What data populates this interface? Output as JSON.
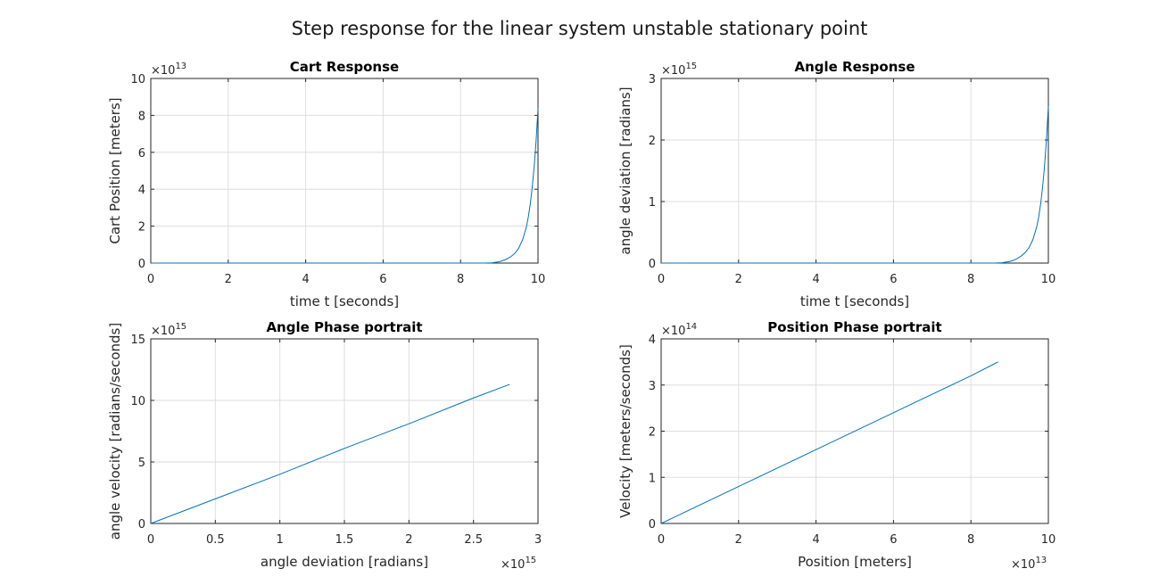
{
  "figure": {
    "title": "Step response for the linear system unstable stationary point"
  },
  "chart_data": [
    {
      "type": "line",
      "title": "Cart Response",
      "xlabel": "time t [seconds]",
      "ylabel": "Cart Position [meters]",
      "xlim": [
        0,
        10
      ],
      "ylim": [
        0,
        100000000000000
      ],
      "xticks": [
        0,
        2,
        4,
        6,
        8,
        10
      ],
      "xtick_labels": [
        "0",
        "2",
        "4",
        "6",
        "8",
        "10"
      ],
      "yticks": [
        0,
        20000000000000,
        40000000000000,
        60000000000000,
        80000000000000,
        100000000000000
      ],
      "ytick_labels": [
        "0",
        "2",
        "4",
        "6",
        "8",
        "10"
      ],
      "x_exponent": "",
      "y_exponent": "13",
      "grid": true,
      "color": "#0072bd",
      "series": [
        {
          "x": [
            0,
            2,
            4,
            6,
            8,
            8.6,
            8.8,
            9.0,
            9.1,
            9.2,
            9.3,
            9.4,
            9.5,
            9.6,
            9.7,
            9.75,
            9.8,
            9.85,
            9.9,
            9.95,
            10
          ],
          "y": [
            0,
            0,
            0,
            0,
            0,
            0,
            100000000000,
            700000000000,
            1400000000000,
            2300000000000,
            3500000000000,
            5200000000000,
            8000000000000,
            12500000000000,
            19500000000000,
            25000000000000,
            32000000000000,
            41000000000000,
            52000000000000,
            66000000000000,
            84000000000000
          ]
        }
      ]
    },
    {
      "type": "line",
      "title": "Angle Response",
      "xlabel": "time t [seconds]",
      "ylabel": "angle deviation [radians]",
      "xlim": [
        0,
        10
      ],
      "ylim": [
        0,
        3000000000000000
      ],
      "xticks": [
        0,
        2,
        4,
        6,
        8,
        10
      ],
      "xtick_labels": [
        "0",
        "2",
        "4",
        "6",
        "8",
        "10"
      ],
      "yticks": [
        0,
        1000000000000000,
        2000000000000000,
        3000000000000000
      ],
      "ytick_labels": [
        "0",
        "1",
        "2",
        "3"
      ],
      "x_exponent": "",
      "y_exponent": "15",
      "grid": true,
      "color": "#0072bd",
      "series": [
        {
          "x": [
            0,
            2,
            4,
            6,
            8,
            8.6,
            8.8,
            9.0,
            9.1,
            9.2,
            9.3,
            9.4,
            9.5,
            9.6,
            9.7,
            9.75,
            9.8,
            9.85,
            9.9,
            9.95,
            10
          ],
          "y": [
            0,
            0,
            0,
            0,
            0,
            0,
            5000000000000,
            25000000000000,
            45000000000000,
            75000000000000,
            115000000000000,
            170000000000000,
            250000000000000,
            380000000000000,
            590000000000000,
            750000000000000,
            960000000000000,
            1230000000000000,
            1570000000000000,
            2000000000000000,
            2550000000000000
          ]
        }
      ]
    },
    {
      "type": "line",
      "title": "Angle Phase portrait",
      "xlabel": "angle deviation [radians]",
      "ylabel": "angle velocity [radians/seconds]",
      "xlim": [
        0,
        3000000000000000
      ],
      "ylim": [
        0,
        15000000000000000
      ],
      "xticks": [
        0,
        500000000000000,
        1000000000000000,
        1500000000000000,
        2000000000000000,
        2500000000000000,
        3000000000000000
      ],
      "xtick_labels": [
        "0",
        "0.5",
        "1",
        "1.5",
        "2",
        "2.5",
        "3"
      ],
      "yticks": [
        0,
        5000000000000000,
        10000000000000000,
        15000000000000000
      ],
      "ytick_labels": [
        "0",
        "5",
        "10",
        "15"
      ],
      "x_exponent": "15",
      "y_exponent": "15",
      "grid": true,
      "color": "#0072bd",
      "series": [
        {
          "x": [
            0,
            500000000000000,
            1000000000000000,
            1500000000000000,
            2000000000000000,
            2500000000000000,
            2780000000000000
          ],
          "y": [
            0,
            2000000000000000,
            4000000000000000,
            6100000000000000,
            8100000000000000,
            10200000000000000,
            11300000000000000
          ]
        }
      ]
    },
    {
      "type": "line",
      "title": "Position Phase portrait",
      "xlabel": "Position [meters]",
      "ylabel": "Velocity [meters/seconds]",
      "xlim": [
        0,
        100000000000000
      ],
      "ylim": [
        0,
        400000000000000
      ],
      "xticks": [
        0,
        20000000000000,
        40000000000000,
        60000000000000,
        80000000000000,
        100000000000000
      ],
      "xtick_labels": [
        "0",
        "2",
        "4",
        "6",
        "8",
        "10"
      ],
      "yticks": [
        0,
        100000000000000,
        200000000000000,
        300000000000000,
        400000000000000
      ],
      "ytick_labels": [
        "0",
        "1",
        "2",
        "3",
        "4"
      ],
      "x_exponent": "13",
      "y_exponent": "14",
      "grid": true,
      "color": "#0072bd",
      "series": [
        {
          "x": [
            0,
            20000000000000,
            40000000000000,
            60000000000000,
            80000000000000,
            87000000000000
          ],
          "y": [
            0,
            80000000000000,
            160000000000000,
            240000000000000,
            320000000000000,
            350000000000000
          ]
        }
      ]
    }
  ]
}
